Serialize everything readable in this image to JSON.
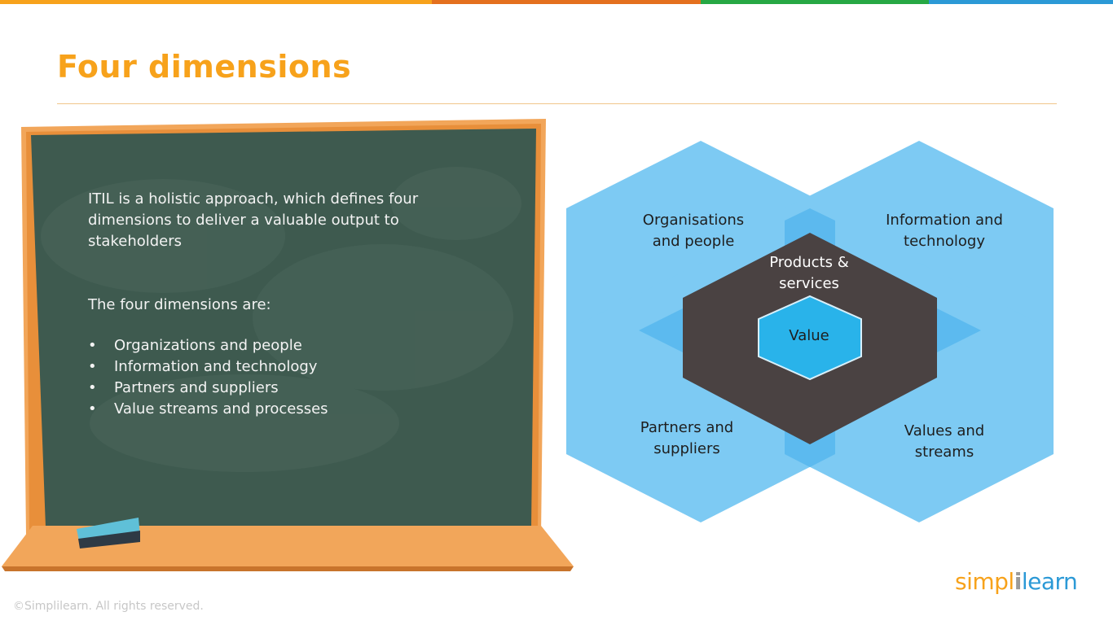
{
  "slide": {
    "title": "Four dimensions",
    "colors": {
      "accent": "#f7a21b",
      "board_green": "#3e5a4f",
      "board_frame": "#f2a65a",
      "hex_blue": "#72c6f2",
      "hex_dark": "#4a4242",
      "value_hex": "#29b3ea",
      "top_bar": [
        "#f7a21b",
        "#e4701e",
        "#27a844",
        "#2b99d6"
      ]
    }
  },
  "board": {
    "intro": "ITIL is a holistic approach, which defines four dimensions to deliver a valuable output to stakeholders",
    "lead": "The four dimensions are:",
    "bullets": [
      "Organizations and people",
      "Information and technology",
      "Partners and suppliers",
      "Value streams and processes"
    ],
    "bullet_symbol": "•"
  },
  "diagram": {
    "top_left": [
      "Organisations",
      "and people"
    ],
    "top_right": [
      "Information and",
      "technology"
    ],
    "bottom_left": [
      "Partners and",
      "suppliers"
    ],
    "bottom_right": [
      "Values and",
      "streams"
    ],
    "center": [
      "Products &",
      "services"
    ],
    "core": "Value"
  },
  "footer": {
    "copyright": "©Simplilearn. All rights reserved.",
    "logo_part1": "simpl",
    "logo_sep": "i",
    "logo_part2": "learn"
  }
}
